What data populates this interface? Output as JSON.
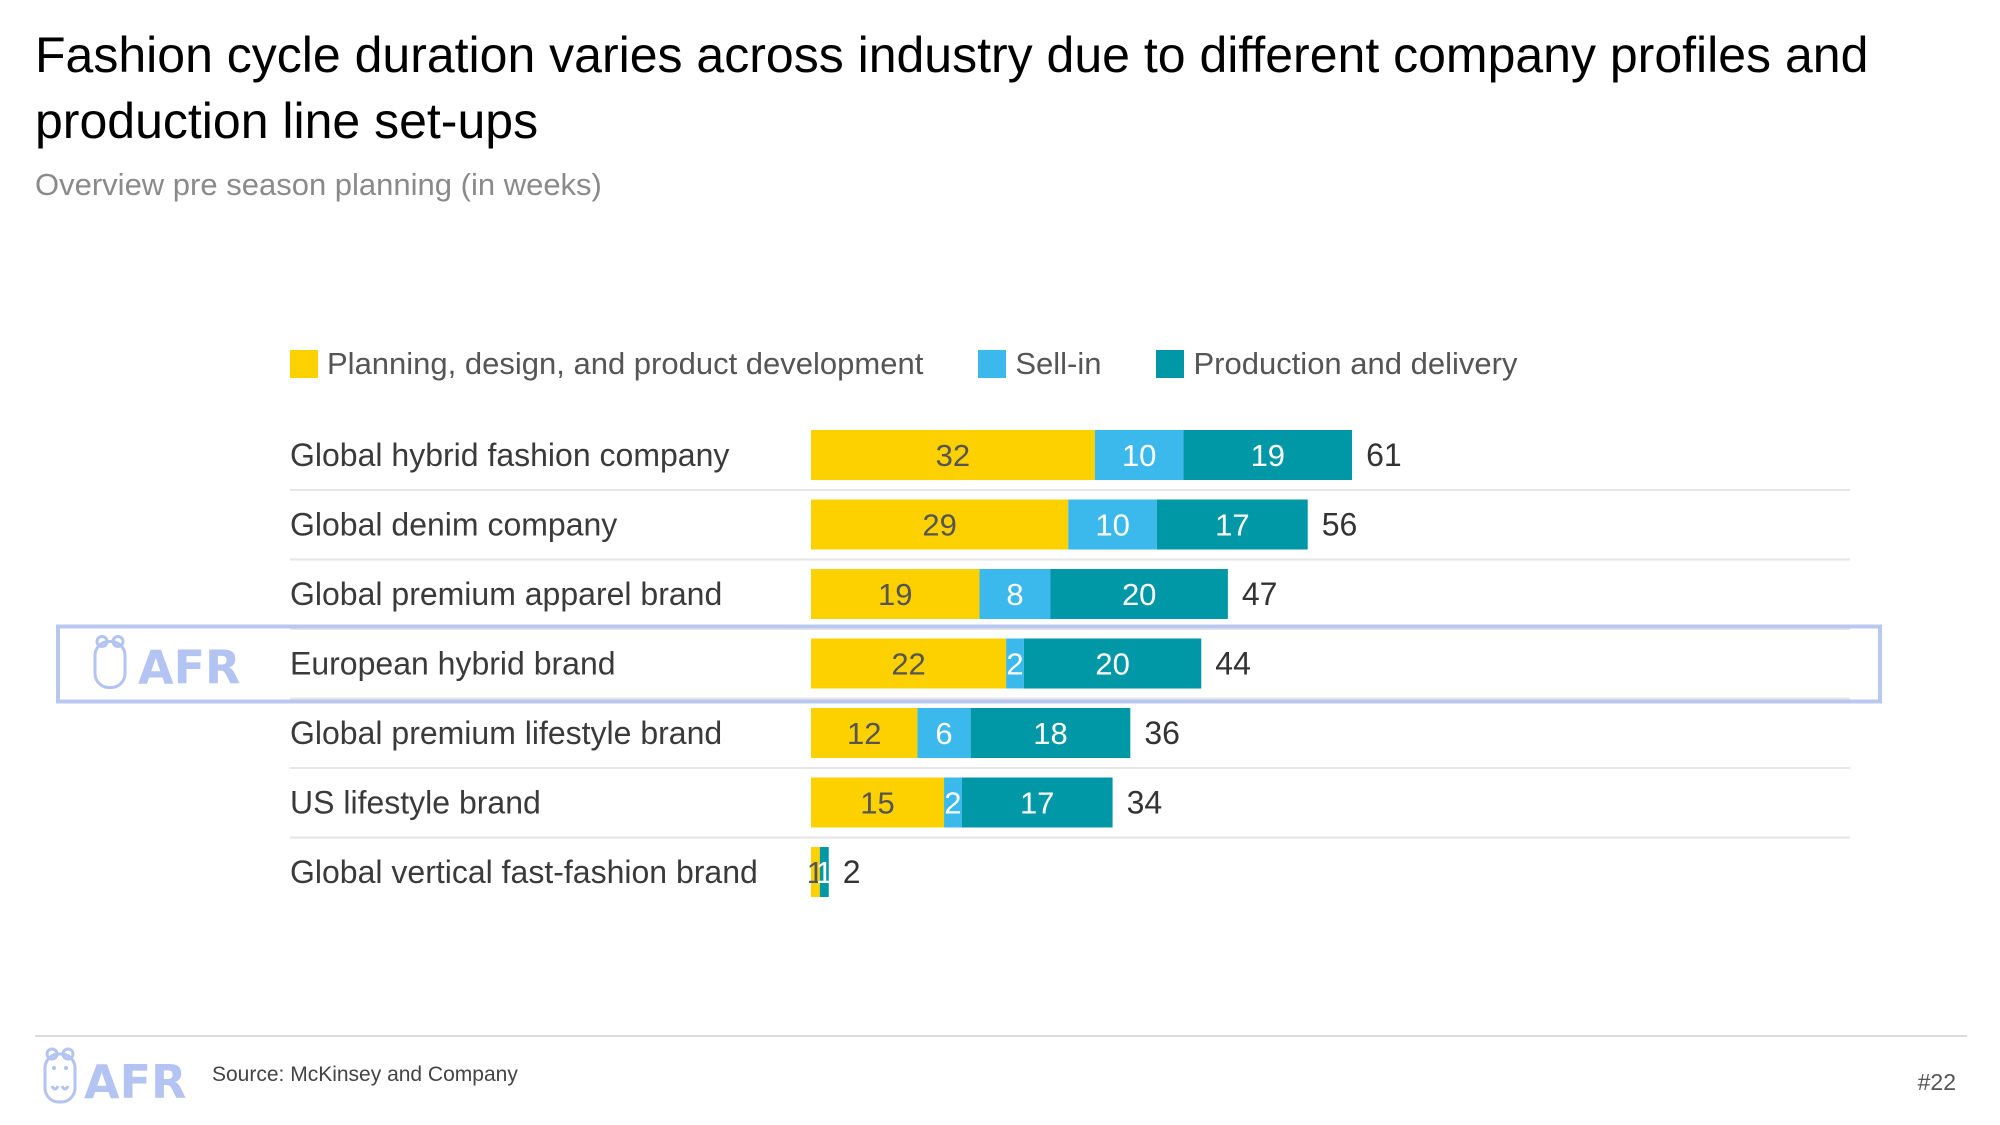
{
  "page": {
    "title": "Fashion cycle duration varies across industry due to different company profiles and production line set-ups",
    "subtitle": "Overview pre season planning (in weeks)",
    "source": "Source: McKinsey and Company",
    "page_number": "#22",
    "logo_text": "AFR",
    "highlight_color": "#b9c8ef",
    "logo_color": "#b3c3f2"
  },
  "chart_data": {
    "type": "bar",
    "orientation": "horizontal",
    "stacked": true,
    "categories": [
      "Global hybrid fashion company",
      "Global denim company",
      "Global premium apparel brand",
      "European hybrid brand",
      "Global premium lifestyle brand",
      "US lifestyle brand",
      "Global vertical fast-fashion brand"
    ],
    "series": [
      {
        "name": "Planning, design, and product development",
        "color": "#fdd000",
        "values": [
          32,
          29,
          19,
          22,
          12,
          15,
          1
        ]
      },
      {
        "name": "Sell-in",
        "color": "#3cb9ec",
        "values": [
          10,
          10,
          8,
          2,
          6,
          2,
          0
        ]
      },
      {
        "name": "Production and delivery",
        "color": "#0097a7",
        "values": [
          19,
          17,
          20,
          20,
          18,
          17,
          1
        ]
      }
    ],
    "totals": [
      61,
      56,
      47,
      44,
      36,
      34,
      2
    ],
    "highlighted_category": "European hybrid brand",
    "xlim": [
      0,
      61
    ],
    "legend_position": "top",
    "grid": false
  }
}
